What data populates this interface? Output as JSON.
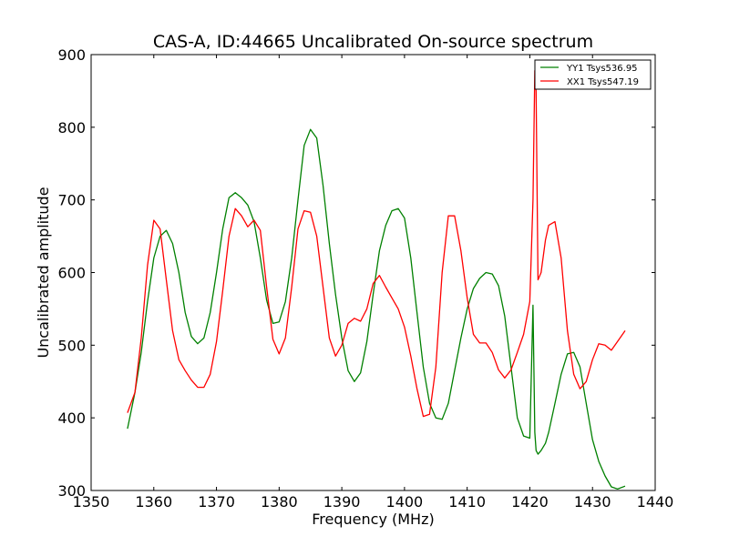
{
  "chart_data": {
    "type": "line",
    "title": "CAS-A, ID:44665 Uncalibrated On-source spectrum",
    "xlabel": "Frequency (MHz)",
    "ylabel": "Uncalibrated amplitude",
    "xlim": [
      1350,
      1440
    ],
    "ylim": [
      300,
      900
    ],
    "xticks": [
      1350,
      1360,
      1370,
      1380,
      1390,
      1400,
      1410,
      1420,
      1430,
      1440
    ],
    "yticks": [
      300,
      400,
      500,
      600,
      700,
      800,
      900
    ],
    "legend_position": "top-right",
    "series": [
      {
        "name": "YY1 Tsys536.95",
        "color": "#008000",
        "x": [
          1355.8,
          1357,
          1358,
          1359,
          1360,
          1361,
          1362,
          1363,
          1364,
          1365,
          1366,
          1367,
          1368,
          1369,
          1370,
          1371,
          1372,
          1373,
          1374,
          1375,
          1376,
          1377,
          1378,
          1379,
          1380,
          1381,
          1382,
          1383,
          1384,
          1385,
          1386,
          1387,
          1388,
          1389,
          1390,
          1391,
          1392,
          1393,
          1394,
          1395,
          1396,
          1397,
          1398,
          1399,
          1400,
          1401,
          1402,
          1403,
          1404,
          1405,
          1406,
          1407,
          1408,
          1409,
          1410,
          1411,
          1412,
          1413,
          1414,
          1415,
          1416,
          1417,
          1418,
          1419,
          1420,
          1420.5,
          1420.8,
          1421,
          1421.3,
          1421.8,
          1422.5,
          1423,
          1424,
          1425,
          1426,
          1427,
          1428,
          1429,
          1430,
          1431,
          1432,
          1433,
          1434,
          1435.2
        ],
        "y": [
          385,
          435,
          490,
          560,
          620,
          650,
          658,
          640,
          600,
          545,
          512,
          502,
          510,
          545,
          600,
          660,
          703,
          710,
          703,
          693,
          670,
          620,
          562,
          530,
          532,
          560,
          620,
          700,
          775,
          797,
          785,
          720,
          640,
          570,
          510,
          465,
          450,
          462,
          505,
          570,
          630,
          665,
          685,
          688,
          675,
          620,
          545,
          470,
          420,
          400,
          398,
          420,
          465,
          510,
          550,
          578,
          592,
          600,
          598,
          582,
          540,
          470,
          400,
          375,
          372,
          555,
          380,
          355,
          350,
          355,
          365,
          380,
          420,
          460,
          488,
          490,
          470,
          420,
          370,
          340,
          320,
          305,
          302,
          306
        ]
      },
      {
        "name": "XX1 Tsys547.19",
        "color": "#ff0000",
        "x": [
          1355.8,
          1357,
          1358,
          1359,
          1360,
          1361,
          1362,
          1363,
          1364,
          1365,
          1366,
          1367,
          1368,
          1369,
          1370,
          1371,
          1372,
          1373,
          1374,
          1375,
          1376,
          1377,
          1378,
          1379,
          1380,
          1381,
          1382,
          1383,
          1384,
          1385,
          1386,
          1387,
          1388,
          1389,
          1390,
          1391,
          1392,
          1393,
          1394,
          1395,
          1396,
          1397,
          1398,
          1399,
          1400,
          1401,
          1402,
          1403,
          1404,
          1405,
          1406,
          1407,
          1408,
          1409,
          1410,
          1411,
          1412,
          1413,
          1414,
          1415,
          1416,
          1417,
          1418,
          1419,
          1420,
          1420.5,
          1420.8,
          1421,
          1421.3,
          1421.8,
          1422.5,
          1423,
          1424,
          1425,
          1426,
          1427,
          1428,
          1429,
          1430,
          1431,
          1432,
          1433,
          1434,
          1435.2
        ],
        "y": [
          407,
          435,
          510,
          610,
          672,
          660,
          590,
          520,
          480,
          465,
          452,
          442,
          442,
          460,
          505,
          575,
          650,
          688,
          678,
          663,
          672,
          658,
          580,
          508,
          488,
          510,
          580,
          660,
          685,
          683,
          650,
          580,
          510,
          485,
          500,
          530,
          537,
          533,
          550,
          585,
          596,
          580,
          565,
          550,
          525,
          485,
          440,
          402,
          405,
          470,
          600,
          678,
          678,
          630,
          565,
          515,
          503,
          503,
          490,
          466,
          455,
          466,
          490,
          515,
          560,
          700,
          878,
          850,
          590,
          600,
          645,
          665,
          670,
          620,
          520,
          460,
          440,
          450,
          480,
          502,
          500,
          493,
          505,
          520
        ]
      }
    ]
  }
}
